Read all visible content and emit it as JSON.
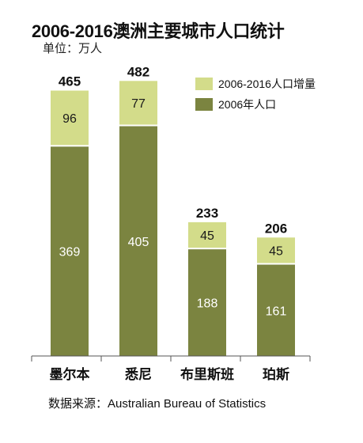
{
  "chart_data": {
    "type": "bar",
    "stacked": true,
    "title": "2006-2016澳洲主要城市人口统计",
    "subtitle": "单位：万人",
    "source": "数据来源：Australian Bureau of Statistics",
    "categories": [
      "墨尔本",
      "悉尼",
      "布里斯班",
      "珀斯"
    ],
    "totals": [
      "465",
      "482",
      "233",
      "206"
    ],
    "series": [
      {
        "name": "2006年人口",
        "values": [
          369,
          405,
          188,
          161
        ],
        "color": "#7b8440",
        "label_color": "#ffffff"
      },
      {
        "name": "2006-2016人口增量",
        "values": [
          96,
          77,
          45,
          45
        ],
        "color": "#d3dc8a",
        "label_color": "#1a1a1a"
      }
    ],
    "legend": {
      "position": "top-right",
      "order": [
        "2006-2016人口增量",
        "2006年人口"
      ]
    },
    "ylim": [
      0,
      500
    ],
    "grid": false
  }
}
